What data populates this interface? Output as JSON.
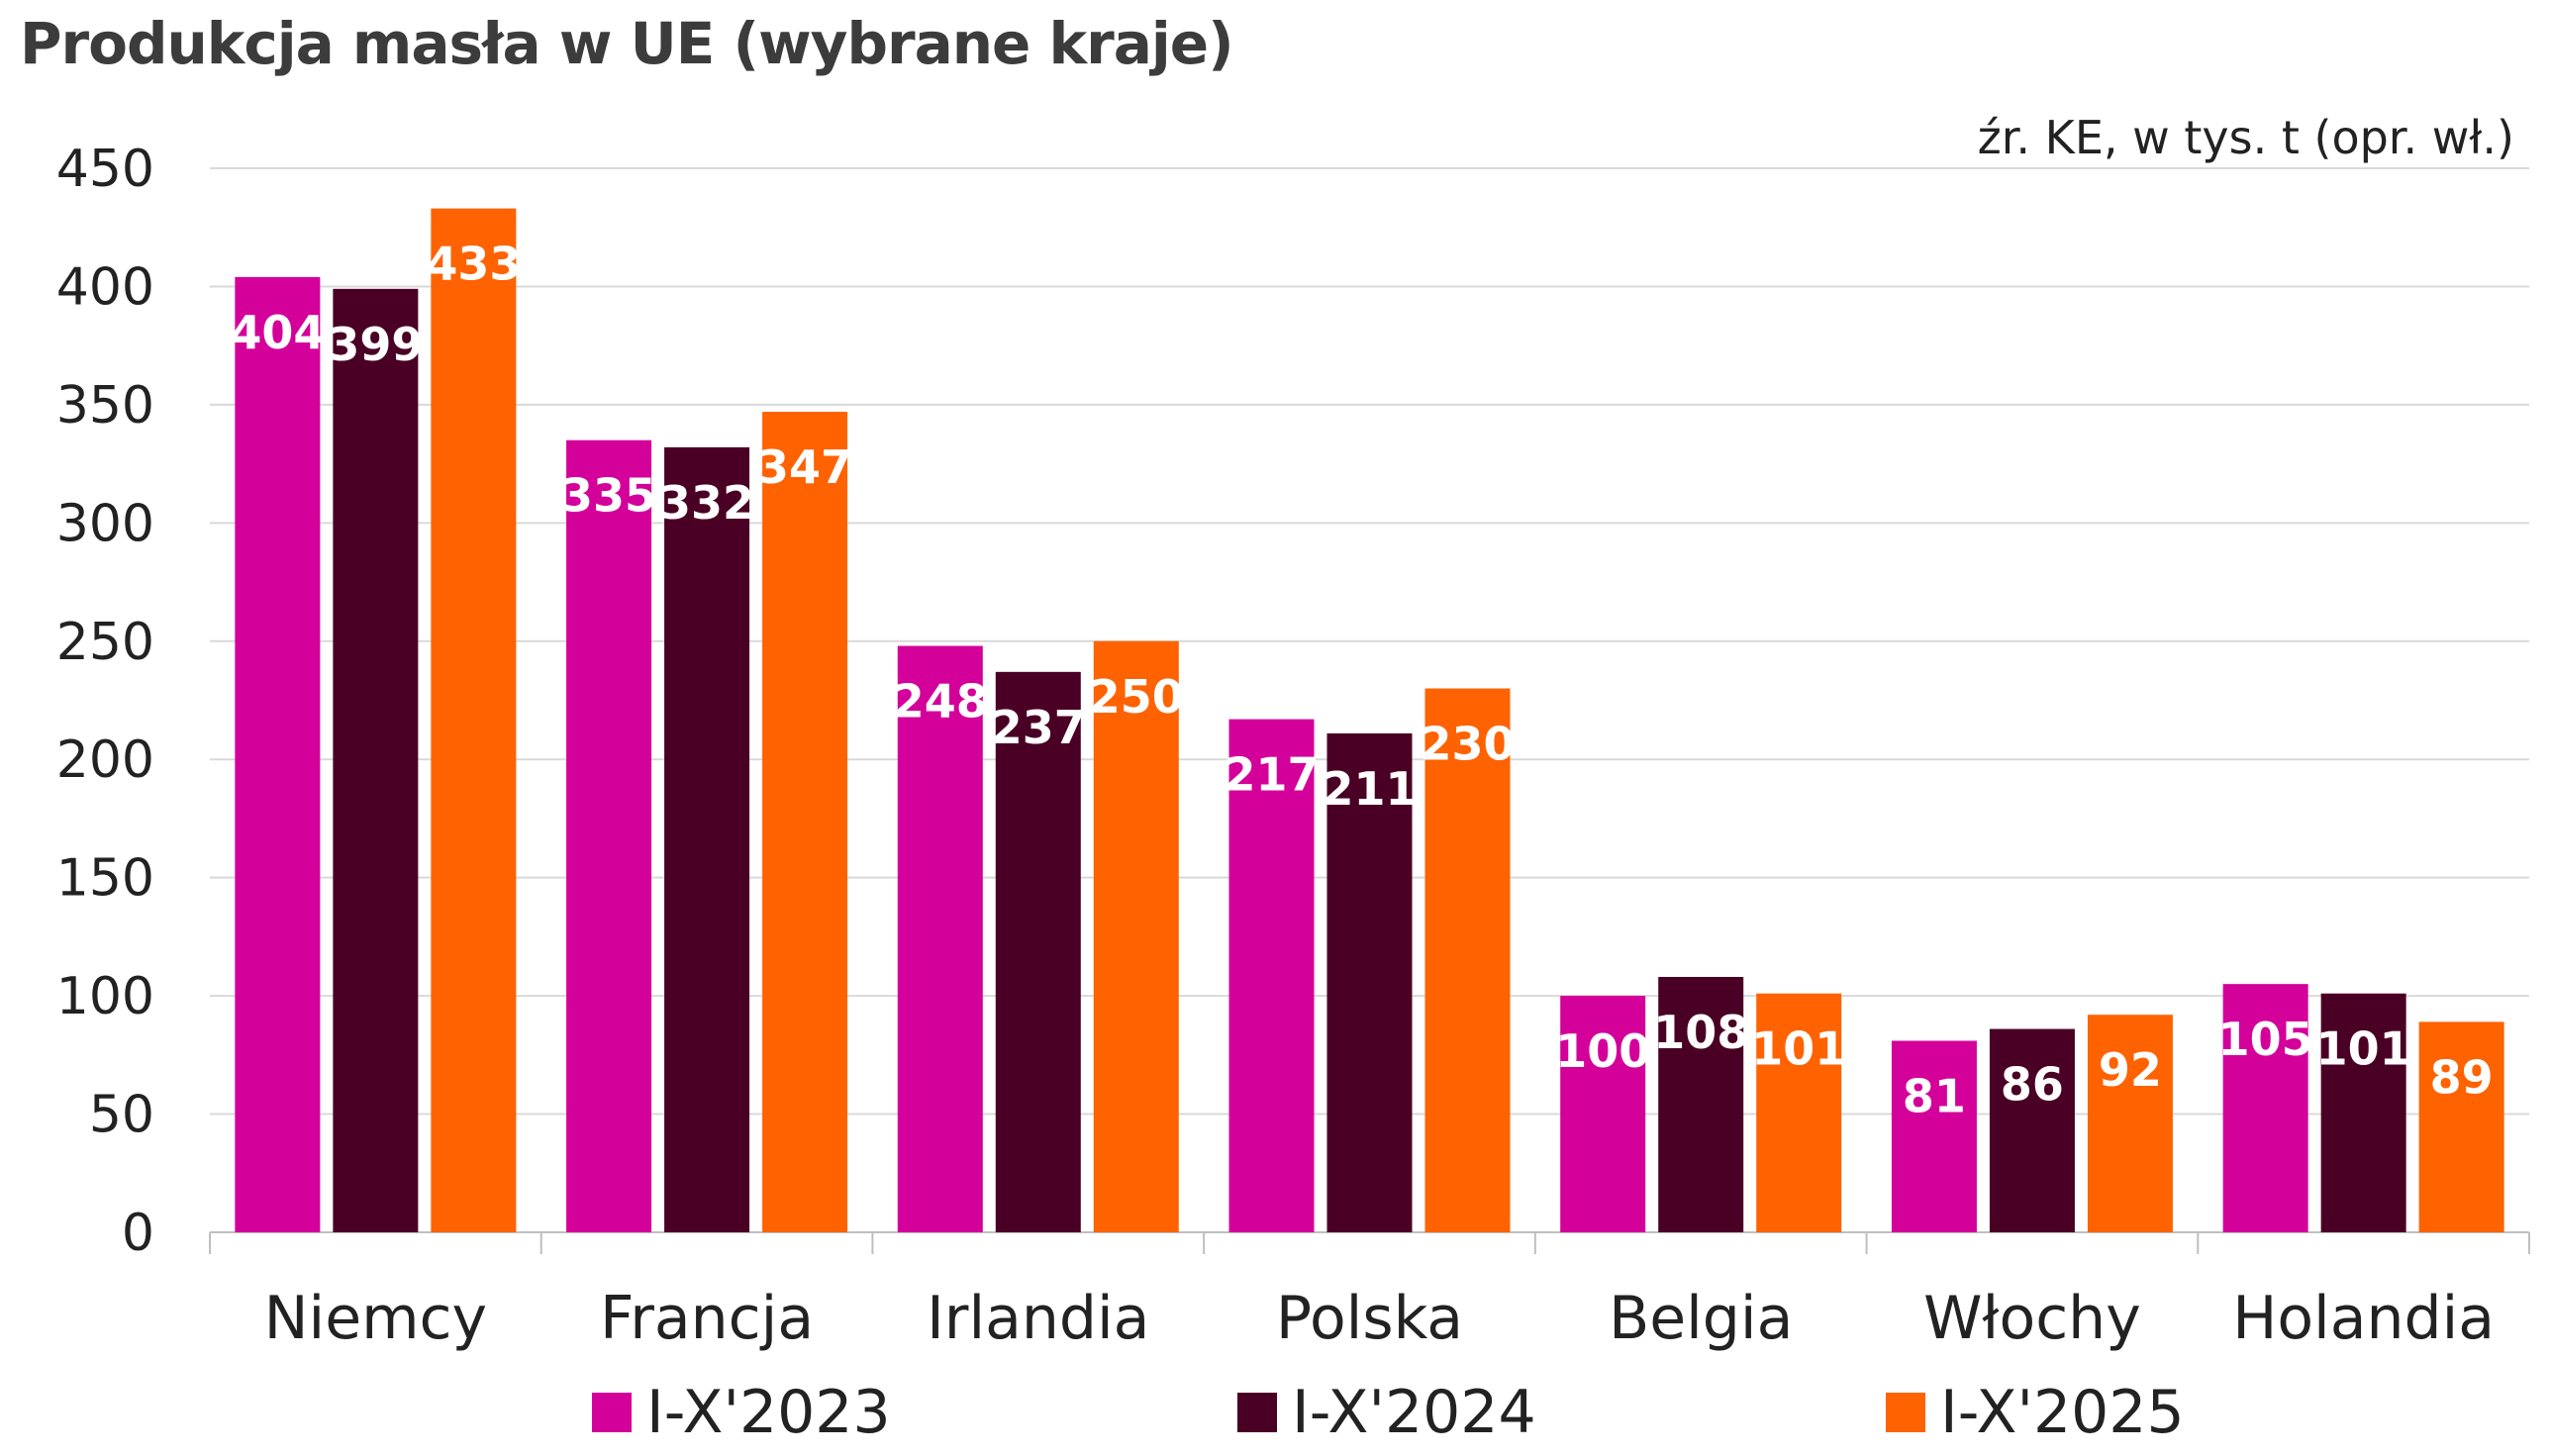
{
  "chart_data": {
    "type": "bar",
    "title": "Produkcja masła w UE (wybrane kraje)",
    "source_note": "źr. KE, w tys. t (opr. wł.)",
    "categories": [
      "Niemcy",
      "Francja",
      "Irlandia",
      "Polska",
      "Belgia",
      "Włochy",
      "Holandia"
    ],
    "series": [
      {
        "name": "I-X'2023",
        "color": "#D4009A",
        "values": [
          404,
          335,
          248,
          217,
          100,
          81,
          105
        ]
      },
      {
        "name": "I-X'2024",
        "color": "#4A0024",
        "values": [
          399,
          332,
          237,
          211,
          108,
          86,
          101
        ]
      },
      {
        "name": "I-X'2025",
        "color": "#FF6200",
        "values": [
          433,
          347,
          250,
          230,
          101,
          92,
          89
        ]
      }
    ],
    "ylim": [
      0,
      450
    ],
    "yticks": [
      0,
      50,
      100,
      150,
      200,
      250,
      300,
      350,
      400,
      450
    ],
    "grid": true,
    "legend_position": "bottom",
    "data_labels": true
  }
}
